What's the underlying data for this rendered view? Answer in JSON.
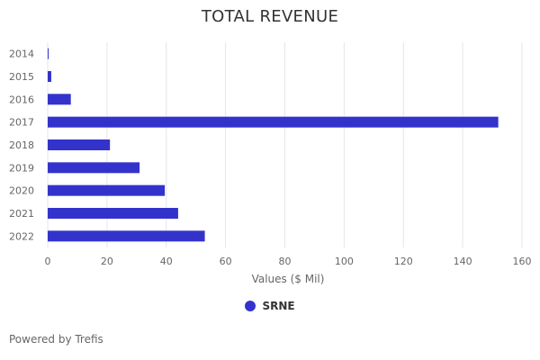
{
  "chart_data": {
    "type": "bar",
    "orientation": "horizontal",
    "title": "TOTAL REVENUE",
    "categories": [
      "2014",
      "2015",
      "2016",
      "2017",
      "2018",
      "2019",
      "2020",
      "2021",
      "2022"
    ],
    "series": [
      {
        "name": "SRNE",
        "values": [
          0.3,
          1.2,
          7.8,
          152,
          21,
          31,
          39.5,
          44,
          53
        ]
      }
    ],
    "xlabel": "Values ($ Mil)",
    "ylabel": "",
    "xlim": [
      0,
      160
    ],
    "xticks": [
      0,
      20,
      40,
      60,
      80,
      100,
      120,
      140,
      160
    ],
    "grid": true,
    "legend_position": "bottom-center"
  },
  "colors": {
    "series": "#3333cc",
    "grid": "#e6e6e6",
    "text": "#666666"
  },
  "credits": "Powered by Trefis"
}
